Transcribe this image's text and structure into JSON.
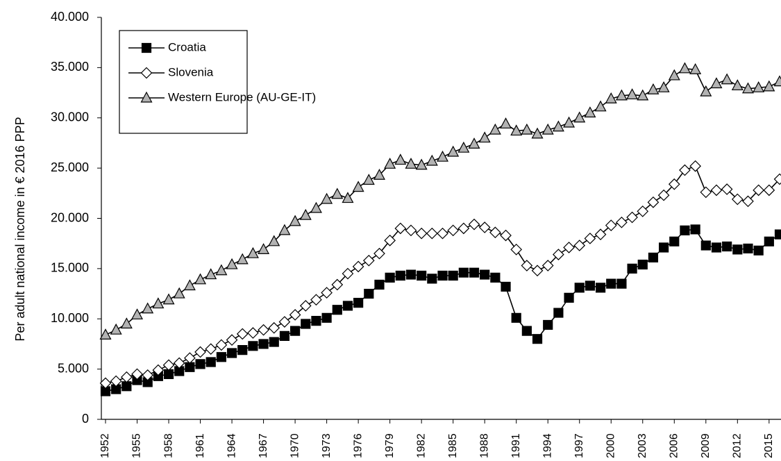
{
  "chart_data": {
    "type": "line",
    "y_axis_label": "Per adult national income in € 2016 PPP",
    "x": [
      1952,
      1953,
      1954,
      1955,
      1956,
      1957,
      1958,
      1959,
      1960,
      1961,
      1962,
      1963,
      1964,
      1965,
      1966,
      1967,
      1968,
      1969,
      1970,
      1971,
      1972,
      1973,
      1974,
      1975,
      1976,
      1977,
      1978,
      1979,
      1980,
      1981,
      1982,
      1983,
      1984,
      1985,
      1986,
      1987,
      1988,
      1989,
      1990,
      1991,
      1992,
      1993,
      1994,
      1995,
      1996,
      1997,
      1998,
      1999,
      2000,
      2001,
      2002,
      2003,
      2004,
      2005,
      2006,
      2007,
      2008,
      2009,
      2010,
      2011,
      2012,
      2013,
      2014,
      2015,
      2016
    ],
    "xlim": [
      1952,
      2016
    ],
    "xticks": [
      1952,
      1955,
      1958,
      1961,
      1964,
      1967,
      1970,
      1973,
      1976,
      1979,
      1982,
      1985,
      1988,
      1991,
      1994,
      1997,
      2000,
      2003,
      2006,
      2009,
      2012,
      2015
    ],
    "ylim": [
      0,
      40000
    ],
    "yticks": [
      0,
      {
        "value": 5000,
        "label": "5.000"
      },
      {
        "value": 10000,
        "label": "10.000"
      },
      {
        "value": 15000,
        "label": "15.000"
      },
      {
        "value": 20000,
        "label": "20.000"
      },
      {
        "value": 25000,
        "label": "25.000"
      },
      {
        "value": 30000,
        "label": "30.000"
      },
      {
        "value": 35000,
        "label": "35.000"
      },
      {
        "value": 40000,
        "label": "40.000"
      }
    ],
    "legend": "upper left",
    "series": [
      {
        "name": "Croatia",
        "color": "#000000",
        "marker": "square",
        "values": [
          2800,
          3000,
          3300,
          3900,
          3700,
          4300,
          4500,
          4800,
          5200,
          5500,
          5700,
          6200,
          6600,
          6900,
          7300,
          7500,
          7700,
          8300,
          8800,
          9500,
          9800,
          10100,
          10900,
          11300,
          11600,
          12500,
          13400,
          14100,
          14300,
          14400,
          14300,
          14000,
          14300,
          14300,
          14600,
          14600,
          14400,
          14100,
          13200,
          10100,
          8800,
          8000,
          9400,
          10600,
          12100,
          13100,
          13300,
          13100,
          13500,
          13500,
          15000,
          15400,
          16100,
          17100,
          17700,
          18800,
          18900,
          17300,
          17100,
          17200,
          16900,
          17000,
          16800,
          17700,
          18400
        ]
      },
      {
        "name": "Slovenia",
        "color": "#ffffff",
        "marker": "diamond",
        "values": [
          3600,
          3800,
          4200,
          4500,
          4400,
          4900,
          5400,
          5600,
          6100,
          6700,
          7000,
          7400,
          7900,
          8500,
          8600,
          8900,
          9100,
          9700,
          10400,
          11300,
          11900,
          12600,
          13400,
          14500,
          15200,
          15800,
          16500,
          17800,
          19000,
          18800,
          18500,
          18500,
          18500,
          18800,
          19000,
          19400,
          19100,
          18600,
          18300,
          16900,
          15300,
          14800,
          15300,
          16400,
          17100,
          17300,
          18000,
          18400,
          19300,
          19600,
          20100,
          20700,
          21600,
          22300,
          23400,
          24800,
          25200,
          22600,
          22800,
          22900,
          21900,
          21700,
          22800,
          22800,
          23900
        ]
      },
      {
        "name": "Western Europe (AU-GE-IT)",
        "color": "#b3b3b3",
        "marker": "triangle",
        "values": [
          8400,
          8900,
          9500,
          10400,
          11000,
          11500,
          11900,
          12500,
          13300,
          13900,
          14400,
          14800,
          15400,
          15900,
          16500,
          16900,
          17700,
          18800,
          19700,
          20300,
          21000,
          21900,
          22400,
          22000,
          23100,
          23800,
          24300,
          25400,
          25800,
          25400,
          25300,
          25700,
          26100,
          26600,
          27000,
          27400,
          28000,
          28800,
          29400,
          28700,
          28800,
          28400,
          28800,
          29100,
          29500,
          30000,
          30500,
          31100,
          31900,
          32200,
          32300,
          32200,
          32800,
          33000,
          34200,
          34900,
          34800,
          32600,
          33400,
          33800,
          33200,
          32900,
          33000,
          33100,
          33600
        ]
      }
    ]
  }
}
